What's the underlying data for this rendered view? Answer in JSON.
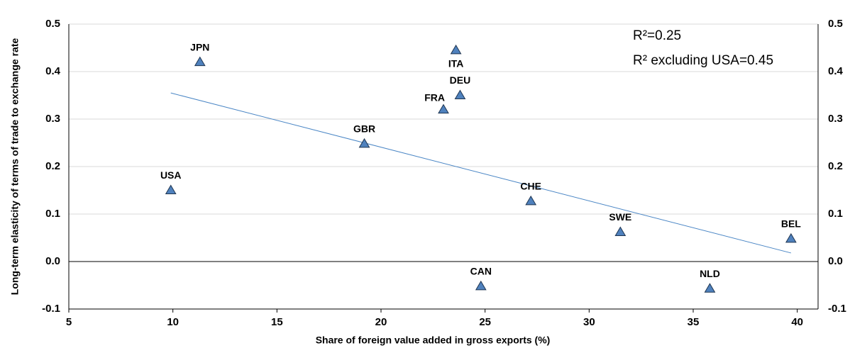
{
  "chart_data": {
    "type": "scatter",
    "x_label": "Share of foreign value added in gross exports (%)",
    "y_label": "Long-term elasticity of terms of trade to exchange rate",
    "annotations": [
      "R²=0.25",
      "R² excluding USA=0.45"
    ],
    "labels": [
      "JPN",
      "ITA",
      "DEU",
      "FRA",
      "GBR",
      "USA",
      "CHE",
      "SWE",
      "BEL",
      "CAN",
      "NLD"
    ],
    "x": [
      11.3,
      23.6,
      23.8,
      23.0,
      19.2,
      9.9,
      27.2,
      31.5,
      39.7,
      24.8,
      35.8
    ],
    "values": [
      0.42,
      0.445,
      0.35,
      0.32,
      0.248,
      0.15,
      0.127,
      0.062,
      0.048,
      -0.052,
      -0.057
    ],
    "color": "#4f81bd",
    "trendline": {
      "x": [
        9.9,
        39.7
      ],
      "y": [
        0.355,
        0.018
      ],
      "color": "#4a86c5"
    },
    "xlim": [
      5,
      41
    ],
    "xticks": [
      5,
      10,
      15,
      20,
      25,
      30,
      35,
      40
    ],
    "ylim": [
      -0.1,
      0.5
    ],
    "yticks": [
      {
        "value": -0.1,
        "label": "-0.1"
      },
      {
        "value": 0,
        "label": "0.0"
      },
      0.1,
      0.2,
      0.3,
      0.4,
      0.5
    ],
    "grid": true
  }
}
